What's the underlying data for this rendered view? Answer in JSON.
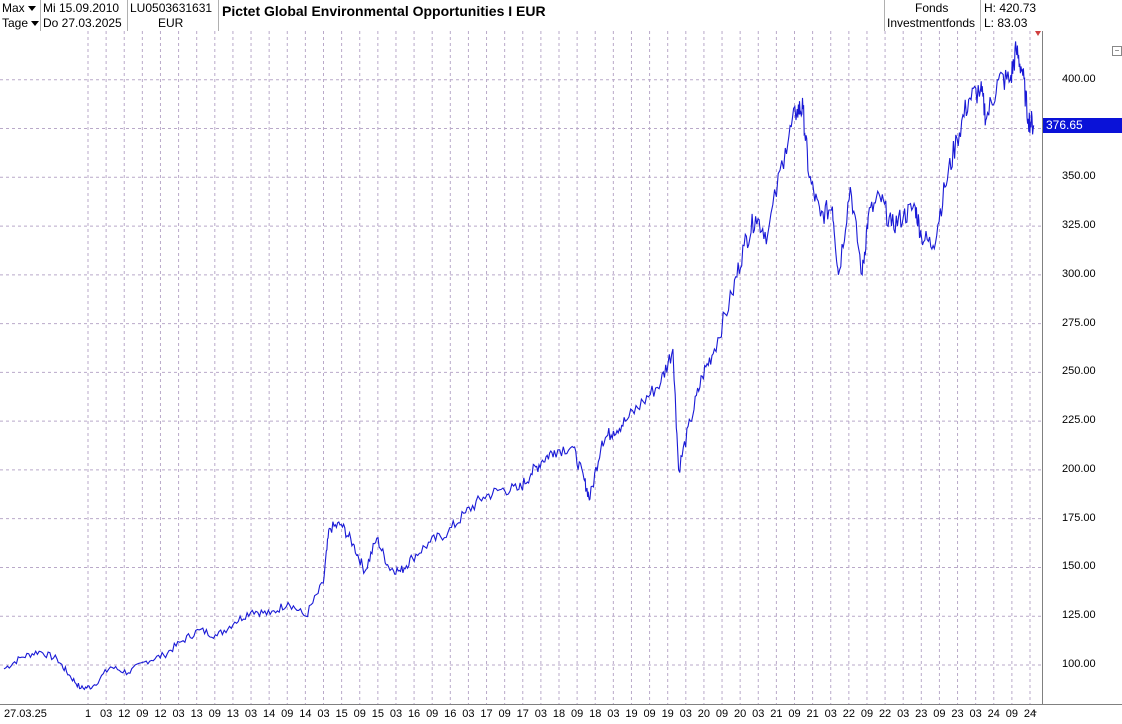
{
  "header": {
    "range_select": "Max",
    "date_from": "Mi 15.09.2010",
    "interval_select": "Tage",
    "date_to": "Do 27.03.2025",
    "isin": "LU0503631631",
    "currency": "EUR",
    "title": "Pictet Global Environmental Opportunities I EUR",
    "type1": "Fonds",
    "type2": "Investmentfonds",
    "high": "H: 420.73",
    "low": "L: 83.03"
  },
  "side_button": "−",
  "bottom_minus": "-",
  "colors": {
    "line": "#1a1ad6",
    "grid": "#b9a9c9",
    "last_box": "#0a12d8"
  },
  "chart_data": {
    "type": "line",
    "title": "Pictet Global Environmental Opportunities I EUR",
    "ylim": [
      80,
      425
    ],
    "yticks": [
      100,
      125,
      150,
      175,
      200,
      225,
      250,
      275,
      300,
      325,
      350,
      375,
      400
    ],
    "ytick_labels": [
      "100.00",
      "125.00",
      "150.00",
      "175.00",
      "200.00",
      "225.00",
      "250.00",
      "275.00",
      "300.00",
      "325.00",
      "350.00",
      "375.00",
      "400.00"
    ],
    "last_value": 376.65,
    "last_value_label": "376.65",
    "x_range": [
      "2010-09-15",
      "2025-03-27"
    ],
    "xtick_labels": [
      "27.03.25",
      "1",
      "03",
      "12",
      "09",
      "12",
      "03",
      "13",
      "09",
      "13",
      "03",
      "14",
      "09",
      "14",
      "03",
      "15",
      "09",
      "15",
      "03",
      "16",
      "09",
      "16",
      "03",
      "17",
      "09",
      "17",
      "03",
      "18",
      "09",
      "18",
      "03",
      "19",
      "09",
      "19",
      "03",
      "20",
      "09",
      "20",
      "03",
      "21",
      "09",
      "21",
      "03",
      "22",
      "09",
      "22",
      "03",
      "23",
      "09",
      "23",
      "03",
      "24",
      "09",
      "24"
    ],
    "grid": true,
    "series": [
      {
        "x": [
          "2010-09",
          "2010-12",
          "2011-03",
          "2011-06",
          "2011-08",
          "2011-10",
          "2011-12",
          "2012-03",
          "2012-06",
          "2012-09",
          "2012-12",
          "2013-03",
          "2013-06",
          "2013-09",
          "2013-12",
          "2014-03",
          "2014-06",
          "2014-09",
          "2014-12",
          "2015-03",
          "2015-04",
          "2015-06",
          "2015-08",
          "2015-10",
          "2015-12",
          "2016-02",
          "2016-04",
          "2016-06",
          "2016-09",
          "2016-12",
          "2017-03",
          "2017-06",
          "2017-09",
          "2017-12",
          "2018-02",
          "2018-04",
          "2018-06",
          "2018-09",
          "2018-11",
          "2018-12",
          "2019-02",
          "2019-04",
          "2019-06",
          "2019-09",
          "2019-12",
          "2020-02",
          "2020-03",
          "2020-05",
          "2020-07",
          "2020-09",
          "2020-12",
          "2021-02",
          "2021-04",
          "2021-06",
          "2021-09",
          "2021-11",
          "2021-12",
          "2022-01",
          "2022-03",
          "2022-05",
          "2022-06",
          "2022-08",
          "2022-10",
          "2022-11",
          "2023-01",
          "2023-03",
          "2023-05",
          "2023-07",
          "2023-08",
          "2023-10",
          "2023-12",
          "2024-02",
          "2024-04",
          "2024-06",
          "2024-07",
          "2024-09",
          "2024-11",
          "2024-12",
          "2025-01",
          "2025-02",
          "2025-03"
        ],
        "y": [
          98,
          104,
          107,
          103,
          95,
          88,
          89,
          99,
          96,
          102,
          105,
          112,
          118,
          115,
          122,
          128,
          126,
          132,
          125,
          142,
          170,
          172,
          162,
          148,
          165,
          150,
          148,
          155,
          163,
          168,
          178,
          186,
          190,
          190,
          198,
          205,
          210,
          212,
          195,
          185,
          215,
          220,
          225,
          235,
          245,
          262,
          200,
          225,
          248,
          262,
          290,
          315,
          330,
          320,
          365,
          385,
          385,
          350,
          330,
          335,
          300,
          345,
          300,
          330,
          340,
          325,
          330,
          335,
          320,
          315,
          345,
          370,
          390,
          395,
          380,
          400,
          400,
          415,
          405,
          380,
          376.65
        ]
      }
    ]
  }
}
